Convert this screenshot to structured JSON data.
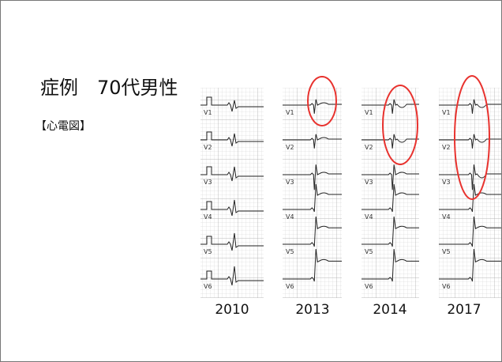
{
  "title": "症例　70代男性",
  "subtitle": "【心電図】",
  "panels": [
    {
      "year": "2010",
      "leads": [
        "V1",
        "V2",
        "V3",
        "V4",
        "V5",
        "V6"
      ]
    },
    {
      "year": "2013",
      "leads": [
        "V1",
        "V2",
        "V3",
        "V4",
        "V5",
        "V6"
      ]
    },
    {
      "year": "2014",
      "leads": [
        "V1",
        "V2",
        "V3",
        "V4",
        "V5",
        "V6"
      ]
    },
    {
      "year": "2017",
      "leads": [
        "V1",
        "V2",
        "V3",
        "V4",
        "V5",
        "V6"
      ]
    }
  ]
}
